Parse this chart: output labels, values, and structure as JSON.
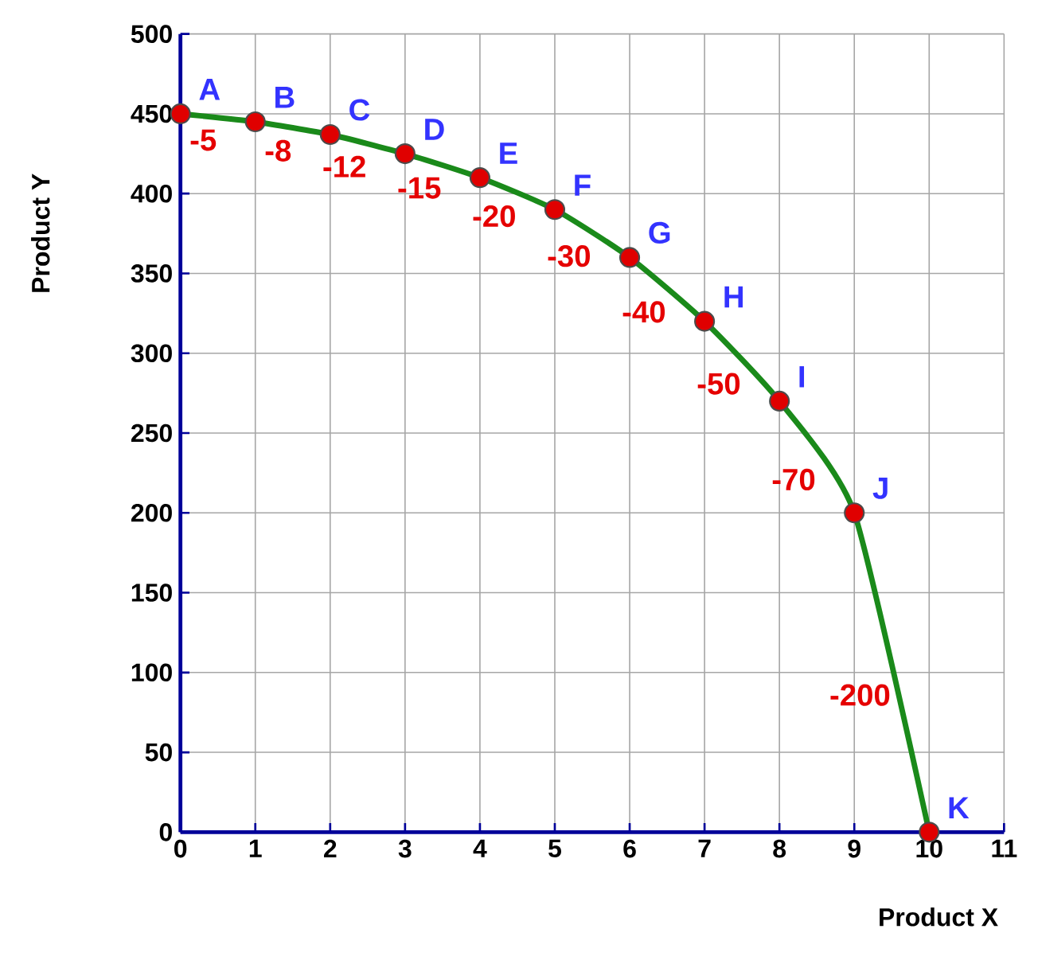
{
  "chart_data": {
    "type": "line",
    "xlabel": "Product X",
    "ylabel": "Product Y",
    "x": [
      0,
      1,
      2,
      3,
      4,
      5,
      6,
      7,
      8,
      9,
      10
    ],
    "series": [
      {
        "color": "#1a8a1a",
        "values": [
          450,
          445,
          437,
          425,
          410,
          390,
          360,
          320,
          270,
          200,
          0
        ]
      }
    ],
    "marker": "circle",
    "xlim": [
      0,
      11
    ],
    "ylim": [
      0,
      500
    ],
    "xticks": [
      0,
      1,
      2,
      3,
      4,
      5,
      6,
      7,
      8,
      9,
      10,
      11
    ],
    "yticks": [
      0,
      50,
      100,
      150,
      200,
      250,
      300,
      350,
      400,
      450,
      500
    ],
    "grid": true,
    "annotations": [
      {
        "text": "A",
        "x": 0,
        "y": 450
      },
      {
        "text": "B",
        "x": 1,
        "y": 445
      },
      {
        "text": "C",
        "x": 2,
        "y": 437
      },
      {
        "text": "D",
        "x": 3,
        "y": 425
      },
      {
        "text": "E",
        "x": 4,
        "y": 410
      },
      {
        "text": "F",
        "x": 5,
        "y": 390
      },
      {
        "text": "G",
        "x": 6,
        "y": 360
      },
      {
        "text": "H",
        "x": 7,
        "y": 320
      },
      {
        "text": "I",
        "x": 8,
        "y": 270
      },
      {
        "text": "J",
        "x": 9,
        "y": 200
      },
      {
        "text": "K",
        "x": 10,
        "y": 0
      },
      {
        "text": "-5",
        "x": 0.5,
        "y": 447.5
      },
      {
        "text": "-8",
        "x": 1.5,
        "y": 441
      },
      {
        "text": "-12",
        "x": 2.5,
        "y": 431
      },
      {
        "text": "-15",
        "x": 3.5,
        "y": 417.5
      },
      {
        "text": "-20",
        "x": 4.5,
        "y": 400
      },
      {
        "text": "-30",
        "x": 5.5,
        "y": 375
      },
      {
        "text": "-40",
        "x": 6.5,
        "y": 340
      },
      {
        "text": "-50",
        "x": 7.5,
        "y": 295
      },
      {
        "text": "-70",
        "x": 8.5,
        "y": 235
      },
      {
        "text": "-200",
        "x": 9.5,
        "y": 100
      }
    ]
  }
}
